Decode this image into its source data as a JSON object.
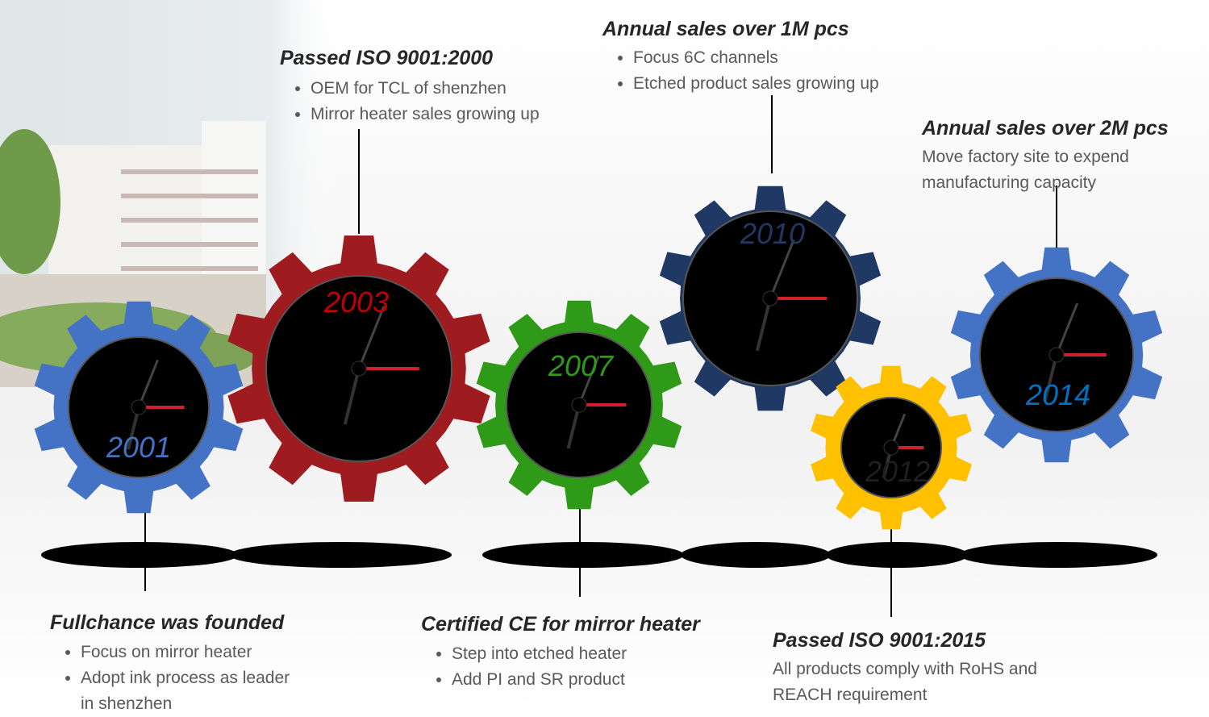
{
  "milestones": [
    {
      "year": "2001",
      "title": "Fullchance was founded",
      "bullets": [
        "Focus on mirror heater",
        "Adopt ink process as leader in shenzhen"
      ]
    },
    {
      "year": "2003",
      "title": "Passed ISO 9001:2000",
      "bullets": [
        "OEM for TCL of  shenzhen",
        "Mirror heater sales growing up"
      ]
    },
    {
      "year": "2007",
      "title": "Certified CE for mirror heater",
      "bullets": [
        "Step into etched heater",
        "Add PI and SR product"
      ]
    },
    {
      "year": "2010",
      "title": "Annual sales over 1M pcs",
      "bullets": [
        "Focus 6C channels",
        "Etched product sales growing up"
      ]
    },
    {
      "year": "2012",
      "title": "Passed ISO 9001:2015",
      "text": "All products comply with RoHS and REACH requirement"
    },
    {
      "year": "2014",
      "title": "Annual sales over 2M pcs",
      "text": "Move factory site to expend manufacturing capacity"
    }
  ]
}
